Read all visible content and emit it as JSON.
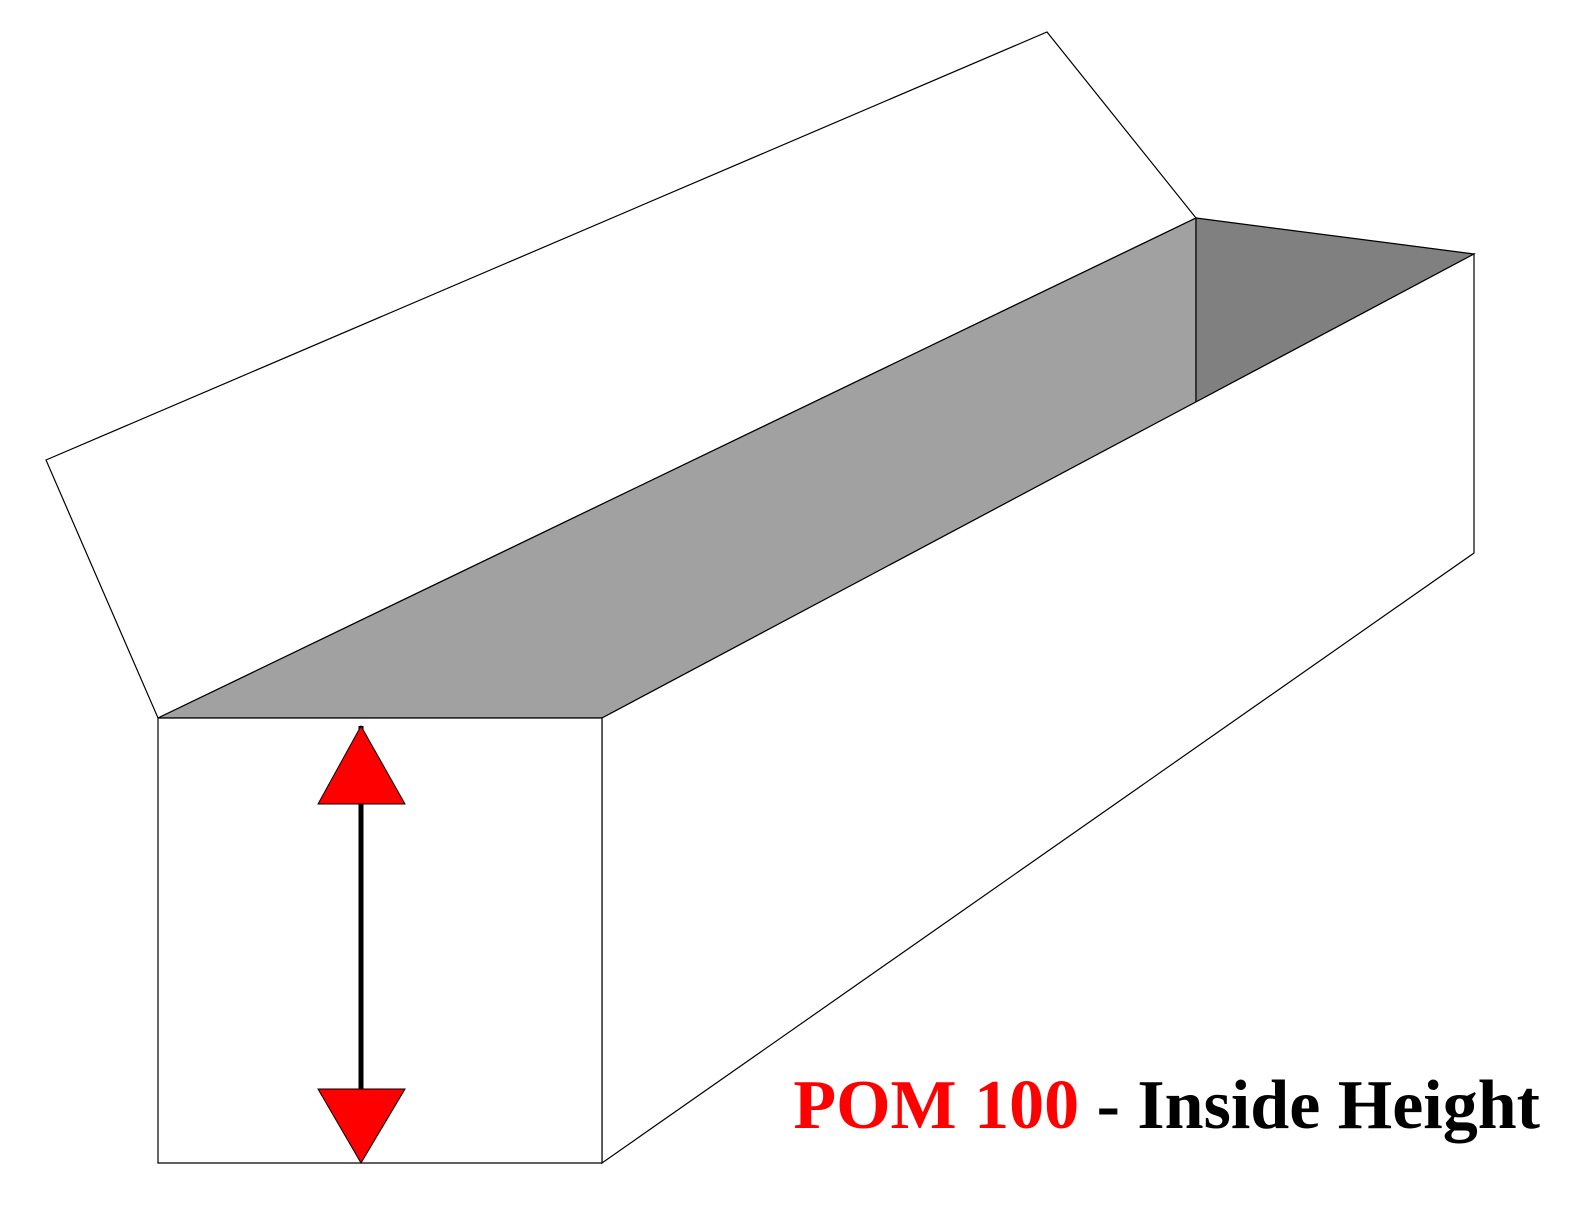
{
  "colors": {
    "background": "#ffffff",
    "outline": "#000000",
    "panel_face": "#ffffff",
    "inner_side_wall": "#a1a1a1",
    "inner_end_wall": "#808080",
    "arrowhead": "#ff0000",
    "arrow_shaft": "#000000",
    "caption_code": "#ff0000",
    "caption_text": "#000000"
  },
  "caption": {
    "code": "POM 100",
    "separator": " - ",
    "description": "Inside Height"
  },
  "icons": {
    "dimension_arrow": "double-headed-vertical-arrow-icon"
  }
}
